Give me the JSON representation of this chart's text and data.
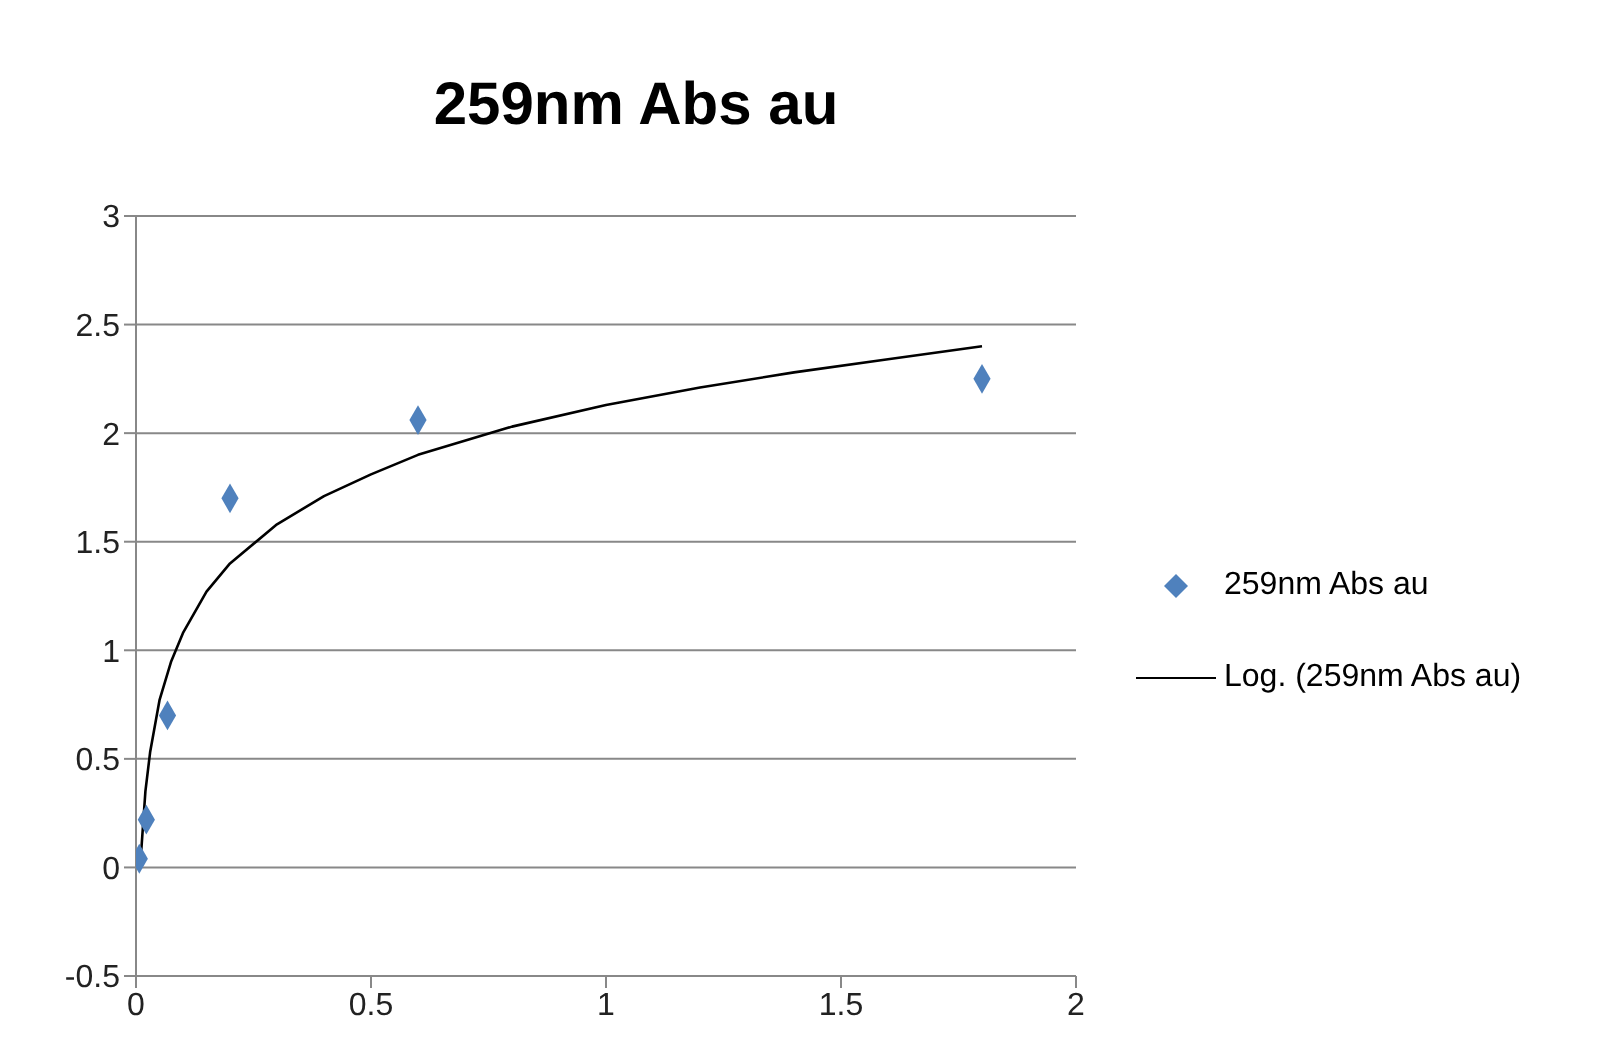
{
  "chart_data": {
    "type": "scatter",
    "title": "259nm Abs au",
    "xlim": [
      0,
      2
    ],
    "xticks": [
      0,
      0.5,
      1,
      1.5,
      2
    ],
    "ylim": [
      -0.5,
      3
    ],
    "yticks": [
      -0.5,
      0,
      0.5,
      1,
      1.5,
      2,
      2.5,
      3
    ],
    "grid": "y",
    "legend": "right",
    "series": [
      {
        "name": "259nm Abs au",
        "marker": "diamond",
        "color": "#4f81bd",
        "x": [
          0.007,
          0.022,
          0.067,
          0.2,
          0.6,
          1.8
        ],
        "values": [
          0.04,
          0.22,
          0.7,
          1.7,
          2.06,
          2.25
        ]
      },
      {
        "name": "Log. (259nm Abs au)",
        "type": "line",
        "marker": "none",
        "line_style": "solid",
        "color": "#000000",
        "x": [
          0.01,
          0.02,
          0.03,
          0.05,
          0.075,
          0.1,
          0.15,
          0.2,
          0.3,
          0.4,
          0.5,
          0.6,
          0.8,
          1,
          1.2,
          1.4,
          1.6,
          1.8
        ],
        "values": [
          0.04,
          0.35,
          0.53,
          0.77,
          0.95,
          1.08,
          1.27,
          1.4,
          1.58,
          1.71,
          1.81,
          1.9,
          2.03,
          2.13,
          2.21,
          2.28,
          2.34,
          2.4
        ]
      }
    ]
  }
}
